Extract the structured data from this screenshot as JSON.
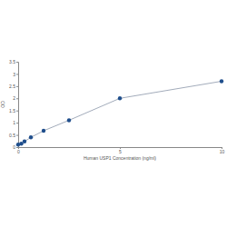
{
  "chart_data": {
    "type": "line",
    "x_label": "Human USP1 Concentration (ng/ml)",
    "y_label": "OD",
    "x": [
      0,
      0.156,
      0.312,
      0.625,
      1.25,
      2.5,
      5,
      10
    ],
    "values": [
      0.1,
      0.14,
      0.23,
      0.4,
      0.67,
      1.1,
      2.0,
      2.7
    ],
    "color": "#1f4e8c",
    "marker": "circle",
    "xlim": [
      0,
      10
    ],
    "xticks": [
      0,
      5,
      10
    ],
    "ylim": [
      0,
      3.5
    ],
    "yticks": [
      0,
      0.5,
      1,
      1.5,
      2,
      2.5,
      3,
      3.5
    ],
    "grid": false
  }
}
